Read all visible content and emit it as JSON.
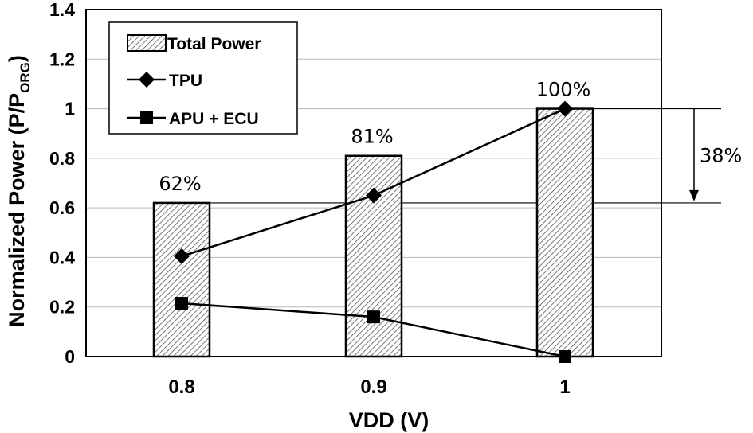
{
  "chart_data": {
    "type": "bar",
    "title": "",
    "xlabel": "VDD (V)",
    "ylabel": "Normalized Power (P/P",
    "ylabel_sub": "ORG",
    "ylabel_end": ")",
    "categories": [
      "0.8",
      "0.9",
      "1"
    ],
    "ylim": [
      0,
      1.4
    ],
    "yticks": [
      "0",
      "0.2",
      "0.4",
      "0.6",
      "0.8",
      "1",
      "1.2",
      "1.4"
    ],
    "grid": true,
    "legend_position": "top-left",
    "series": [
      {
        "name": "Total Power",
        "kind": "bar",
        "pattern": "hatched",
        "values": [
          0.62,
          0.81,
          1.0
        ]
      },
      {
        "name": "TPU",
        "kind": "line",
        "marker": "diamond",
        "values": [
          0.405,
          0.65,
          1.0
        ]
      },
      {
        "name": "APU + ECU",
        "kind": "line",
        "marker": "square",
        "values": [
          0.215,
          0.16,
          0.0
        ]
      }
    ],
    "bar_labels": [
      "62%",
      "81%",
      "100%"
    ],
    "annotation": {
      "text": "38%",
      "from": 1.0,
      "to": 0.62
    }
  }
}
